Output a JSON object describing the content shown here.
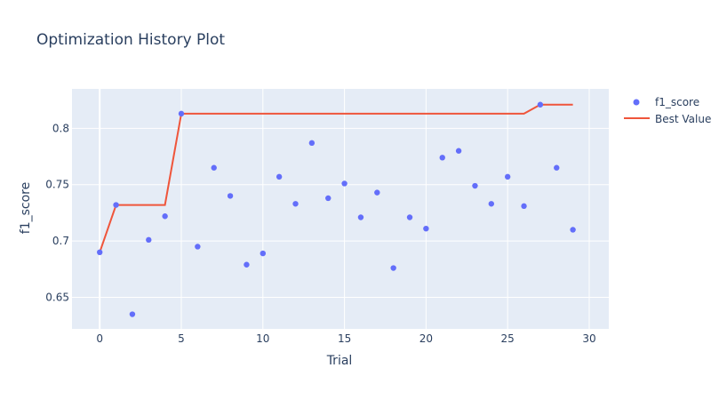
{
  "chart_data": {
    "type": "scatter",
    "title": "Optimization History Plot",
    "xlabel": "Trial",
    "ylabel": "f1_score",
    "xlim": [
      -1.7,
      31.2
    ],
    "ylim": [
      0.622,
      0.835
    ],
    "xticks": [
      0,
      5,
      10,
      15,
      20,
      25,
      30
    ],
    "yticks": [
      0.65,
      0.7,
      0.75,
      0.8
    ],
    "grid": true,
    "legend_position": "top-right",
    "colors": {
      "plot_bg": "#e5ecf6",
      "grid": "#ffffff",
      "f1_score": "#636efa",
      "best_value": "#ef553b"
    },
    "series": [
      {
        "name": "f1_score",
        "mode": "markers",
        "x": [
          0,
          1,
          2,
          3,
          4,
          5,
          6,
          7,
          8,
          9,
          10,
          11,
          12,
          13,
          14,
          15,
          16,
          17,
          18,
          19,
          20,
          21,
          22,
          23,
          24,
          25,
          26,
          27,
          28,
          29
        ],
        "y": [
          0.69,
          0.732,
          0.635,
          0.701,
          0.722,
          0.813,
          0.695,
          0.765,
          0.74,
          0.679,
          0.689,
          0.757,
          0.733,
          0.787,
          0.738,
          0.751,
          0.721,
          0.743,
          0.676,
          0.721,
          0.711,
          0.774,
          0.78,
          0.749,
          0.733,
          0.757,
          0.731,
          0.821,
          0.765,
          0.71
        ]
      },
      {
        "name": "Best Value",
        "mode": "lines",
        "x": [
          0,
          1,
          2,
          3,
          4,
          5,
          6,
          7,
          8,
          9,
          10,
          11,
          12,
          13,
          14,
          15,
          16,
          17,
          18,
          19,
          20,
          21,
          22,
          23,
          24,
          25,
          26,
          27,
          28,
          29
        ],
        "y": [
          0.69,
          0.732,
          0.732,
          0.732,
          0.732,
          0.813,
          0.813,
          0.813,
          0.813,
          0.813,
          0.813,
          0.813,
          0.813,
          0.813,
          0.813,
          0.813,
          0.813,
          0.813,
          0.813,
          0.813,
          0.813,
          0.813,
          0.813,
          0.813,
          0.813,
          0.813,
          0.813,
          0.821,
          0.821,
          0.821
        ]
      }
    ]
  }
}
